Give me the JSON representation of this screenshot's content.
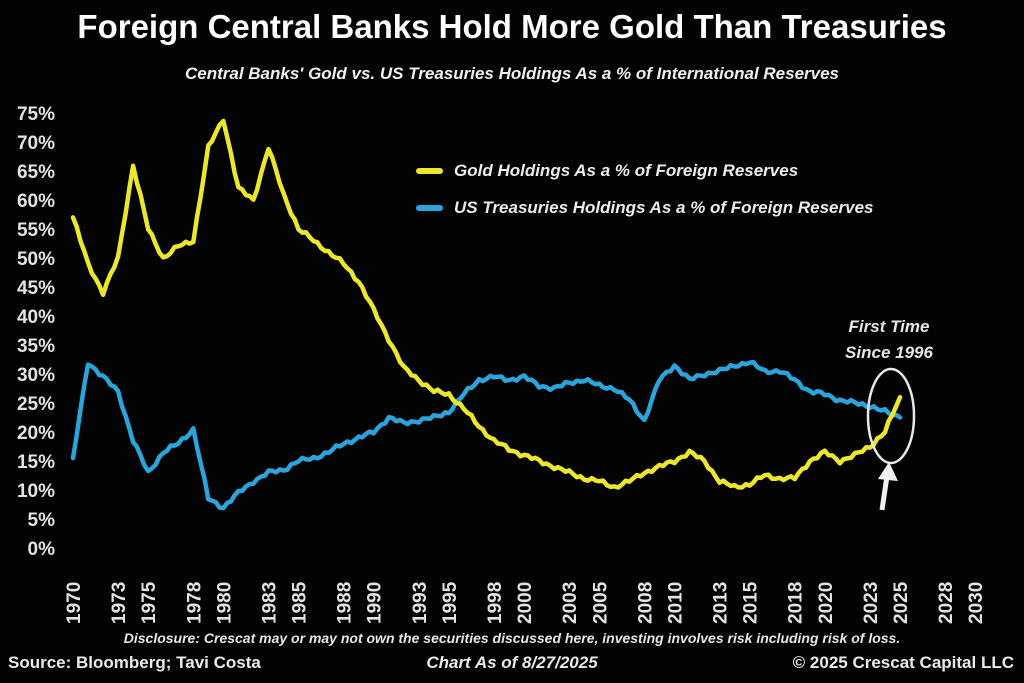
{
  "header": {
    "title": "Foreign Central Banks Hold More Gold Than Treasuries",
    "subtitle": "Central Banks' Gold vs. US Treasuries Holdings As a % of International Reserves"
  },
  "legend": {
    "items": [
      {
        "label": "Gold Holdings As a % of Foreign Reserves",
        "color": "#ece72b"
      },
      {
        "label": "US Treasuries Holdings As a % of Foreign Reserves",
        "color": "#2ba4dc"
      }
    ]
  },
  "annotation": {
    "line1": "First Time",
    "line2": "Since 1996"
  },
  "footer": {
    "disclosure": "Disclosure: Crescat may or may not own the securities discussed here, investing involves risk including risk of loss.",
    "source": "Source: Bloomberg; Tavi Costa",
    "as_of": "Chart As of 8/27/2025",
    "copyright": "© 2025 Crescat Capital LLC"
  },
  "chart_data": {
    "type": "line",
    "title": "Central Banks' Gold vs. US Treasuries Holdings As a % of International Reserves",
    "xlabel": "",
    "ylabel": "",
    "xlim": [
      1970,
      2030
    ],
    "ylim": [
      0,
      75
    ],
    "grid": false,
    "background": "#030303",
    "legend_position": "top-center",
    "y_ticks_pct": [
      0,
      5,
      10,
      15,
      20,
      25,
      30,
      35,
      40,
      45,
      50,
      55,
      60,
      65,
      70,
      75
    ],
    "x_ticks_years": [
      1970,
      1973,
      1975,
      1978,
      1980,
      1983,
      1985,
      1988,
      1990,
      1993,
      1995,
      1998,
      2000,
      2003,
      2005,
      2008,
      2010,
      2013,
      2015,
      2018,
      2020,
      2023,
      2025,
      2028,
      2030
    ],
    "years": [
      1970,
      1971,
      1972,
      1973,
      1974,
      1975,
      1976,
      1977,
      1978,
      1979,
      1980,
      1981,
      1982,
      1983,
      1984,
      1985,
      1986,
      1987,
      1988,
      1989,
      1990,
      1991,
      1992,
      1993,
      1994,
      1995,
      1996,
      1997,
      1998,
      1999,
      2000,
      2001,
      2002,
      2003,
      2004,
      2005,
      2006,
      2007,
      2008,
      2009,
      2010,
      2011,
      2012,
      2013,
      2014,
      2015,
      2016,
      2017,
      2018,
      2019,
      2020,
      2021,
      2022,
      2023,
      2024,
      2025
    ],
    "series": [
      {
        "name": "Gold Holdings As a % of Foreign Reserves",
        "color": "#ece72b",
        "values": [
          57,
          49,
          44,
          50,
          66,
          55,
          50,
          52,
          53,
          69,
          74,
          62,
          60,
          69,
          61,
          55,
          53,
          51,
          49,
          46,
          41,
          36,
          31,
          29,
          27,
          26.5,
          24,
          21,
          18.5,
          17,
          16,
          15,
          14,
          13,
          12,
          11.5,
          10.5,
          11.5,
          13,
          14,
          15,
          16.5,
          15,
          11.5,
          10.5,
          11,
          12.5,
          12,
          12,
          15,
          16.5,
          15,
          16,
          17.5,
          20,
          26
        ]
      },
      {
        "name": "US Treasuries Holdings As a % of Foreign Reserves",
        "color": "#2ba4dc",
        "values": [
          15.5,
          32,
          29.5,
          27,
          18.5,
          13,
          16.5,
          18,
          20.5,
          8.5,
          7,
          9.5,
          11.5,
          13,
          13.5,
          15,
          15.5,
          16.5,
          18,
          19,
          20,
          22.5,
          21.5,
          22,
          22.5,
          23.5,
          26.5,
          29,
          29.5,
          29,
          29.5,
          28,
          27.5,
          28.5,
          29,
          28,
          27.5,
          25.5,
          22,
          29,
          31.5,
          29,
          30,
          30.5,
          31.5,
          32,
          30.5,
          30.5,
          29,
          27,
          26.5,
          25.5,
          25,
          24.5,
          23.5,
          22.5
        ]
      }
    ],
    "annotations": [
      {
        "text": "First Time Since 1996",
        "type": "ellipse-and-arrow",
        "at_year": 2025,
        "at_value_pct": 24,
        "note": "gold crosses above treasuries"
      }
    ],
    "as_of_date": "8/27/2025"
  }
}
